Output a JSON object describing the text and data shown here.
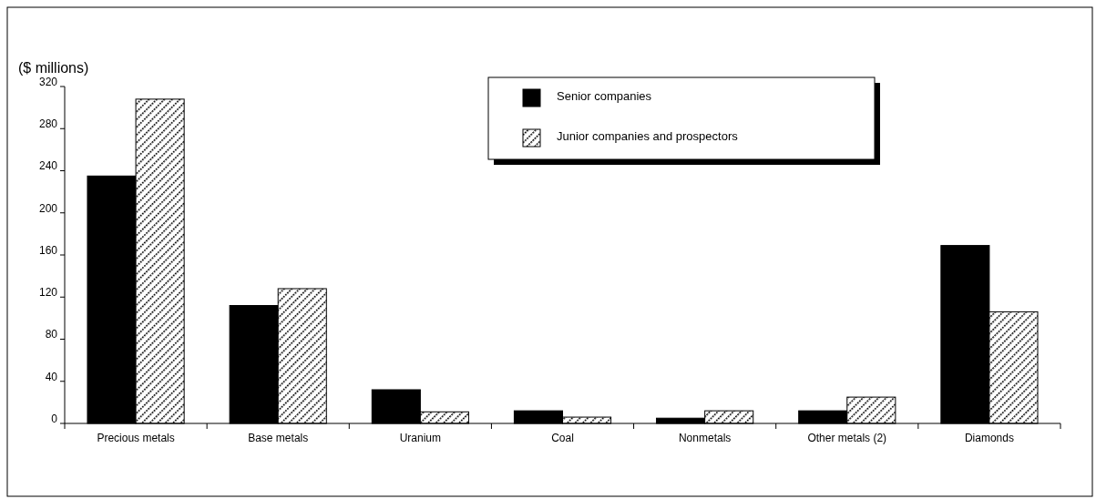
{
  "chart_data": {
    "type": "bar",
    "title": "($ millions)",
    "categories": [
      "Precious metals",
      "Base metals",
      "Uranium",
      "Coal",
      "Nonmetals",
      "Other metals (2)",
      "Diamonds"
    ],
    "series": [
      {
        "name": "Senior companies",
        "color": "#000000",
        "values": [
          235,
          112,
          32,
          12,
          5,
          12,
          169
        ]
      },
      {
        "name": "Junior companies and prospectors",
        "color": "#000000",
        "values": [
          308,
          128,
          11,
          6,
          12,
          25,
          106
        ]
      }
    ],
    "ylim": [
      0,
      320
    ],
    "yticks": [
      0,
      40,
      80,
      120,
      160,
      200,
      240,
      280,
      320
    ],
    "grid": false,
    "legend": "top right"
  }
}
